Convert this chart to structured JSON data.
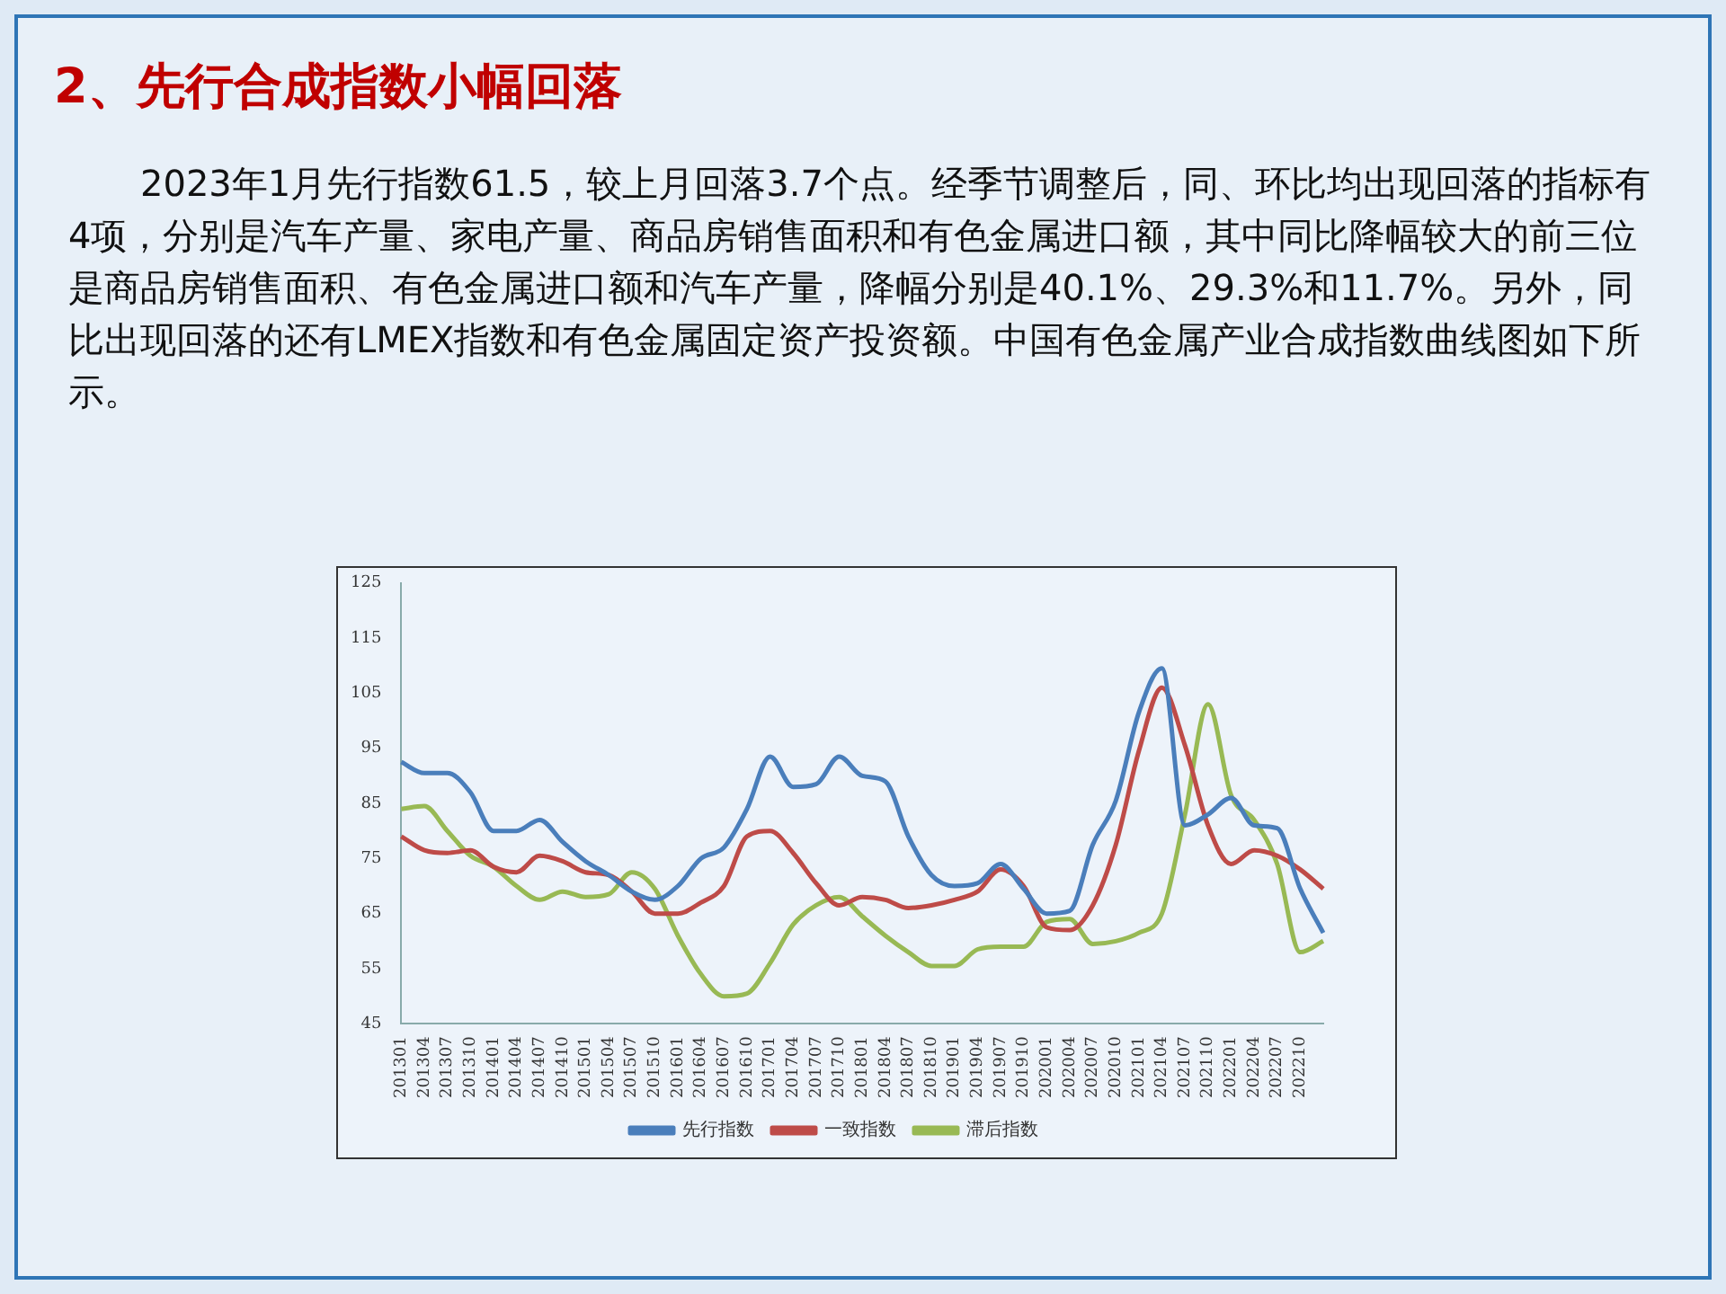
{
  "chart_data": {
    "type": "line",
    "title": "2、先行合成指数小幅回落",
    "subtitle": "2023年1月先行指数61.5，较上月回落3.7个点。经季节调整后，同、环比均出现回落的指标有4项，分别是汽车产量、家电产量、商品房销售面积和有色金属进口额，其中同比降幅较大的前三位是商品房销售面积、有色金属进口额和汽车产量，降幅分别是40.1%、29.3%和11.7%。另外，同比出现回落的还有LMEX指数和有色金属固定资产投资额。中国有色金属产业合成指数曲线图如下所示。",
    "categories": [
      "201301",
      "201304",
      "201307",
      "201310",
      "201401",
      "201404",
      "201407",
      "201410",
      "201501",
      "201504",
      "201507",
      "201510",
      "201601",
      "201604",
      "201607",
      "201610",
      "201701",
      "201704",
      "201707",
      "201710",
      "201801",
      "201804",
      "201807",
      "201810",
      "201901",
      "201904",
      "201907",
      "201910",
      "202001",
      "202004",
      "202007",
      "202010",
      "202101",
      "202104",
      "202107",
      "202110",
      "202201",
      "202204",
      "202207",
      "202210",
      null
    ],
    "series": [
      {
        "name": "先行指数",
        "color": "#4a7ebb",
        "values": [
          92.5,
          90.5,
          90.5,
          87,
          80,
          80,
          82,
          78,
          74.5,
          72,
          69,
          67.5,
          70,
          75,
          77,
          84,
          93.5,
          88,
          88.5,
          93.5,
          90,
          89,
          79,
          72,
          70,
          70.5,
          74,
          69.5,
          65,
          65.5,
          77.5,
          85.5,
          101.5,
          109.5,
          81,
          83,
          86,
          81,
          80.5,
          69.5,
          61.5
        ]
      },
      {
        "name": "一致指数",
        "color": "#be4b48",
        "values": [
          79,
          76.5,
          76,
          76.5,
          73.5,
          72.5,
          75.5,
          74.5,
          72.5,
          72,
          69,
          65,
          65,
          67,
          70,
          79,
          80,
          76,
          70.5,
          66.5,
          68,
          67.5,
          66,
          66.5,
          67.5,
          69,
          73,
          70,
          62.5,
          62,
          66.5,
          77.5,
          94.5,
          106,
          95.5,
          81,
          74,
          76.5,
          75.5,
          73,
          69.5
        ]
      },
      {
        "name": "滞后指数",
        "color": "#98b954",
        "values": [
          84,
          84.5,
          80,
          75.5,
          73.5,
          70,
          67.5,
          69,
          68,
          68.5,
          72.5,
          69.5,
          61,
          54,
          50,
          50.5,
          56,
          63,
          66.5,
          68,
          64.5,
          61,
          58,
          55.5,
          55.5,
          58.5,
          59,
          59,
          63.5,
          64,
          59.5,
          60,
          61.5,
          65,
          83,
          103,
          86.5,
          82,
          74,
          58,
          60
        ]
      }
    ],
    "ylim": [
      45,
      125
    ],
    "yticks": [
      45,
      55,
      65,
      75,
      85,
      95,
      105,
      115,
      125
    ],
    "grid": false,
    "legend": "bottom",
    "marker": "none",
    "line_style": "solid"
  }
}
